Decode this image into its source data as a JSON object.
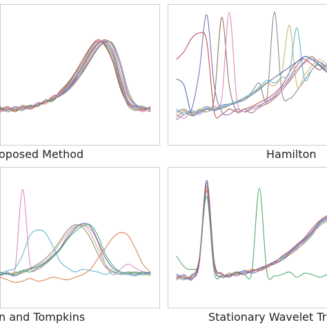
{
  "chart_data": [
    {
      "type": "line",
      "title": "Proposed Method",
      "x": [
        0,
        0.05,
        0.1,
        0.15,
        0.2,
        0.25,
        0.3,
        0.35,
        0.4,
        0.45,
        0.5,
        0.55,
        0.6,
        0.65,
        0.7,
        0.75,
        0.8,
        0.85,
        0.9,
        0.95,
        1
      ],
      "xlim": [
        0,
        1
      ],
      "ylim": [
        0,
        1
      ],
      "grid": false,
      "legend": "none",
      "series": [
        {
          "values": [
            0.22,
            0.21,
            0.23,
            0.22,
            0.24,
            0.25,
            0.27,
            0.29,
            0.33,
            0.38,
            0.45,
            0.54,
            0.64,
            0.72,
            0.74,
            0.66,
            0.46,
            0.29,
            0.24,
            0.23,
            0.22
          ]
        },
        {
          "values": [
            0.2,
            0.22,
            0.21,
            0.23,
            0.23,
            0.26,
            0.26,
            0.3,
            0.32,
            0.37,
            0.43,
            0.52,
            0.62,
            0.71,
            0.75,
            0.69,
            0.5,
            0.32,
            0.25,
            0.22,
            0.23
          ]
        },
        {
          "values": [
            0.24,
            0.2,
            0.22,
            0.21,
            0.25,
            0.24,
            0.28,
            0.28,
            0.34,
            0.4,
            0.47,
            0.56,
            0.66,
            0.73,
            0.72,
            0.62,
            0.42,
            0.27,
            0.22,
            0.24,
            0.21
          ]
        },
        {
          "values": [
            0.21,
            0.23,
            0.2,
            0.24,
            0.22,
            0.25,
            0.27,
            0.31,
            0.35,
            0.41,
            0.49,
            0.58,
            0.68,
            0.74,
            0.7,
            0.58,
            0.38,
            0.26,
            0.23,
            0.21,
            0.24
          ]
        },
        {
          "values": [
            0.23,
            0.21,
            0.24,
            0.22,
            0.24,
            0.26,
            0.28,
            0.3,
            0.33,
            0.37,
            0.44,
            0.51,
            0.6,
            0.69,
            0.74,
            0.71,
            0.55,
            0.34,
            0.25,
            0.23,
            0.22
          ]
        },
        {
          "values": [
            0.22,
            0.24,
            0.21,
            0.23,
            0.25,
            0.24,
            0.29,
            0.29,
            0.36,
            0.42,
            0.5,
            0.6,
            0.69,
            0.75,
            0.71,
            0.59,
            0.4,
            0.25,
            0.21,
            0.22,
            0.2
          ]
        },
        {
          "values": [
            0.2,
            0.21,
            0.23,
            0.22,
            0.23,
            0.27,
            0.27,
            0.32,
            0.34,
            0.39,
            0.46,
            0.55,
            0.65,
            0.73,
            0.73,
            0.64,
            0.44,
            0.28,
            0.23,
            0.2,
            0.23
          ]
        },
        {
          "values": [
            0.23,
            0.22,
            0.22,
            0.25,
            0.23,
            0.25,
            0.28,
            0.3,
            0.32,
            0.36,
            0.42,
            0.5,
            0.59,
            0.68,
            0.73,
            0.72,
            0.58,
            0.37,
            0.26,
            0.24,
            0.22
          ]
        }
      ]
    },
    {
      "type": "line",
      "title": "Hamilton",
      "x": [
        0,
        0.05,
        0.1,
        0.15,
        0.2,
        0.25,
        0.3,
        0.35,
        0.4,
        0.45,
        0.5,
        0.55,
        0.6,
        0.65,
        0.7,
        0.75,
        0.8,
        0.85,
        0.9,
        0.95,
        1
      ],
      "xlim": [
        0,
        1
      ],
      "ylim": [
        0,
        1
      ],
      "grid": false,
      "legend": "none",
      "series": [
        {
          "values": [
            0.6,
            0.66,
            0.76,
            0.8,
            0.74,
            0.2,
            0.18,
            0.22,
            0.2,
            0.22,
            0.24,
            0.27,
            0.3,
            0.34,
            0.4,
            0.5,
            0.58,
            0.6,
            0.56,
            0.52,
            0.56
          ]
        },
        {
          "values": [
            0.14,
            0.18,
            0.22,
            0.5,
            0.94,
            0.4,
            0.2,
            0.18,
            0.22,
            0.2,
            0.23,
            0.25,
            0.28,
            0.32,
            0.38,
            0.46,
            0.55,
            0.62,
            0.6,
            0.58,
            0.52
          ]
        },
        {
          "values": [
            0.16,
            0.2,
            0.17,
            0.22,
            0.2,
            0.3,
            0.92,
            0.4,
            0.2,
            0.22,
            0.19,
            0.24,
            0.26,
            0.3,
            0.36,
            0.44,
            0.52,
            0.58,
            0.62,
            0.56,
            0.5
          ]
        },
        {
          "values": [
            0.18,
            0.15,
            0.2,
            0.18,
            0.22,
            0.24,
            0.3,
            0.96,
            0.3,
            0.2,
            0.22,
            0.23,
            0.27,
            0.31,
            0.36,
            0.43,
            0.5,
            0.57,
            0.6,
            0.58,
            0.54
          ]
        },
        {
          "values": [
            0.2,
            0.22,
            0.19,
            0.21,
            0.24,
            0.22,
            0.25,
            0.26,
            0.28,
            0.3,
            0.35,
            0.42,
            0.3,
            0.96,
            0.35,
            0.3,
            0.36,
            0.44,
            0.52,
            0.56,
            0.5
          ]
        },
        {
          "values": [
            0.19,
            0.21,
            0.18,
            0.22,
            0.2,
            0.23,
            0.22,
            0.25,
            0.27,
            0.3,
            0.33,
            0.38,
            0.42,
            0.4,
            0.5,
            0.86,
            0.4,
            0.48,
            0.55,
            0.6,
            0.56
          ]
        },
        {
          "values": [
            0.22,
            0.18,
            0.21,
            0.19,
            0.23,
            0.21,
            0.24,
            0.26,
            0.28,
            0.31,
            0.34,
            0.39,
            0.44,
            0.42,
            0.46,
            0.5,
            0.84,
            0.45,
            0.52,
            0.58,
            0.54
          ]
        },
        {
          "values": [
            0.45,
            0.4,
            0.18,
            0.2,
            0.22,
            0.21,
            0.23,
            0.25,
            0.27,
            0.29,
            0.33,
            0.37,
            0.42,
            0.46,
            0.5,
            0.54,
            0.58,
            0.62,
            0.6,
            0.55,
            0.5
          ]
        }
      ]
    },
    {
      "type": "line",
      "title": "Pan and Tompkins",
      "x": [
        0,
        0.05,
        0.1,
        0.15,
        0.2,
        0.25,
        0.3,
        0.35,
        0.4,
        0.45,
        0.5,
        0.55,
        0.6,
        0.65,
        0.7,
        0.75,
        0.8,
        0.85,
        0.9,
        0.95,
        1
      ],
      "xlim": [
        0,
        1
      ],
      "ylim": [
        0,
        1
      ],
      "grid": false,
      "legend": "none",
      "series": [
        {
          "values": [
            0.2,
            0.22,
            0.24,
            0.85,
            0.28,
            0.24,
            0.28,
            0.34,
            0.4,
            0.5,
            0.56,
            0.58,
            0.55,
            0.45,
            0.28,
            0.2,
            0.24,
            0.28,
            0.25,
            0.22,
            0.2
          ]
        },
        {
          "values": [
            0.19,
            0.21,
            0.2,
            0.23,
            0.25,
            0.28,
            0.32,
            0.38,
            0.46,
            0.54,
            0.58,
            0.56,
            0.48,
            0.36,
            0.26,
            0.22,
            0.2,
            0.22,
            0.21,
            0.2,
            0.22
          ]
        },
        {
          "values": [
            0.22,
            0.2,
            0.22,
            0.21,
            0.24,
            0.27,
            0.3,
            0.36,
            0.44,
            0.52,
            0.57,
            0.58,
            0.52,
            0.4,
            0.28,
            0.23,
            0.21,
            0.2,
            0.22,
            0.21,
            0.19
          ]
        },
        {
          "values": [
            0.21,
            0.23,
            0.25,
            0.35,
            0.5,
            0.54,
            0.52,
            0.42,
            0.3,
            0.25,
            0.22,
            0.24,
            0.23,
            0.22,
            0.2,
            0.22,
            0.21,
            0.2,
            0.19,
            0.21,
            0.2
          ]
        },
        {
          "values": [
            0.2,
            0.21,
            0.19,
            0.22,
            0.24,
            0.26,
            0.29,
            0.34,
            0.4,
            0.48,
            0.55,
            0.59,
            0.57,
            0.46,
            0.33,
            0.25,
            0.22,
            0.21,
            0.2,
            0.22,
            0.21
          ]
        },
        {
          "values": [
            0.18,
            0.16,
            0.14,
            0.15,
            0.17,
            0.15,
            0.16,
            0.18,
            0.17,
            0.16,
            0.18,
            0.2,
            0.24,
            0.32,
            0.4,
            0.48,
            0.52,
            0.5,
            0.4,
            0.28,
            0.22
          ]
        },
        {
          "values": [
            0.22,
            0.2,
            0.21,
            0.23,
            0.22,
            0.25,
            0.28,
            0.33,
            0.39,
            0.47,
            0.53,
            0.57,
            0.58,
            0.5,
            0.36,
            0.27,
            0.22,
            0.21,
            0.22,
            0.2,
            0.21
          ]
        }
      ]
    },
    {
      "type": "line",
      "title": "Stationary Wavelet Tr",
      "x": [
        0,
        0.05,
        0.1,
        0.15,
        0.2,
        0.25,
        0.3,
        0.35,
        0.4,
        0.45,
        0.5,
        0.55,
        0.6,
        0.65,
        0.7,
        0.75,
        0.8,
        0.85,
        0.9,
        0.95,
        1
      ],
      "xlim": [
        0,
        1
      ],
      "ylim": [
        0,
        1
      ],
      "grid": false,
      "legend": "none",
      "series": [
        {
          "values": [
            0.18,
            0.16,
            0.2,
            0.3,
            0.88,
            0.28,
            0.18,
            0.2,
            0.22,
            0.21,
            0.23,
            0.24,
            0.26,
            0.28,
            0.32,
            0.36,
            0.4,
            0.44,
            0.5,
            0.58,
            0.62
          ]
        },
        {
          "values": [
            0.2,
            0.18,
            0.17,
            0.28,
            0.92,
            0.3,
            0.2,
            0.19,
            0.21,
            0.23,
            0.22,
            0.25,
            0.27,
            0.3,
            0.33,
            0.37,
            0.42,
            0.47,
            0.53,
            0.6,
            0.64
          ]
        },
        {
          "values": [
            0.16,
            0.19,
            0.18,
            0.32,
            0.86,
            0.26,
            0.19,
            0.21,
            0.2,
            0.22,
            0.24,
            0.23,
            0.25,
            0.29,
            0.31,
            0.35,
            0.39,
            0.45,
            0.51,
            0.57,
            0.61
          ]
        },
        {
          "values": [
            0.34,
            0.26,
            0.24,
            0.3,
            0.8,
            0.22,
            0.19,
            0.2,
            0.21,
            0.2,
            0.22,
            0.86,
            0.22,
            0.19,
            0.2,
            0.22,
            0.18,
            0.21,
            0.2,
            0.18,
            0.2
          ]
        },
        {
          "values": [
            0.19,
            0.17,
            0.19,
            0.29,
            0.9,
            0.29,
            0.21,
            0.18,
            0.22,
            0.2,
            0.23,
            0.24,
            0.27,
            0.29,
            0.34,
            0.38,
            0.43,
            0.48,
            0.55,
            0.61,
            0.65
          ]
        },
        {
          "values": [
            0.17,
            0.2,
            0.16,
            0.31,
            0.84,
            0.27,
            0.18,
            0.2,
            0.19,
            0.22,
            0.21,
            0.23,
            0.26,
            0.28,
            0.31,
            0.36,
            0.41,
            0.46,
            0.52,
            0.59,
            0.63
          ]
        }
      ]
    }
  ],
  "captions": [
    "oposed Method",
    "Hamilton",
    "n and Tompkins",
    "Stationary Wavelet Tr"
  ],
  "colors": [
    "#4c72b0",
    "#dd8452",
    "#55a868",
    "#c44e52",
    "#8172b3",
    "#937860",
    "#da8bc3",
    "#8c8c8c",
    "#ccb974",
    "#64b5cd"
  ]
}
